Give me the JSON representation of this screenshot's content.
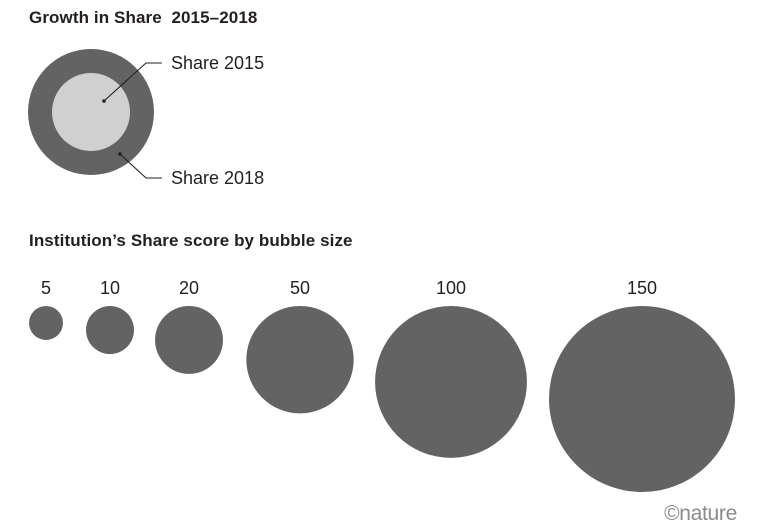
{
  "legend": {
    "title": "Growth in Share  2015–2018",
    "inner_label": "Share 2015",
    "outer_label": "Share 2018"
  },
  "scale": {
    "title": "Institution’s Share score by bubble size",
    "bubbles": [
      {
        "label": "5",
        "value": 5
      },
      {
        "label": "10",
        "value": 10
      },
      {
        "label": "20",
        "value": 20
      },
      {
        "label": "50",
        "value": 50
      },
      {
        "label": "100",
        "value": 100
      },
      {
        "label": "150",
        "value": 150
      }
    ]
  },
  "colors": {
    "outer": "#636363",
    "inner": "#d0d0d0",
    "bubble": "#636363",
    "text": "#231f20"
  },
  "credit": "©nature"
}
